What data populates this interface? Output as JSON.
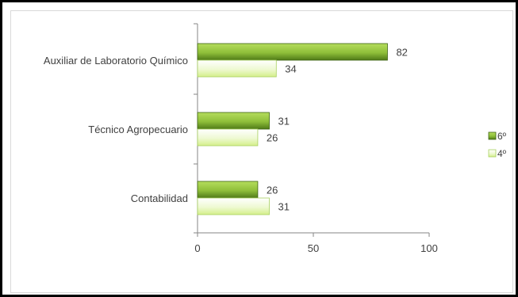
{
  "chart_data": {
    "type": "bar",
    "orientation": "horizontal",
    "categories": [
      "Auxiliar de Laboratorio Químico",
      "Técnico Agropecuario",
      "Contabilidad"
    ],
    "series": [
      {
        "name": "6º",
        "values": [
          82,
          31,
          26
        ]
      },
      {
        "name": "4º",
        "values": [
          34,
          26,
          31
        ]
      }
    ],
    "xlim": [
      0,
      100
    ],
    "xticks": [
      0,
      50,
      100
    ],
    "grid": false,
    "legend_position": "right",
    "colors": {
      "6º": {
        "light": "#b5dd5c",
        "mid": "#8fbf3a",
        "dark": "#4f7a17",
        "stroke": "#3d6312"
      },
      "4º": {
        "light": "#ffffff",
        "mid": "#eef9d2",
        "dark": "#d4ef8a",
        "stroke": "#a8d060"
      }
    }
  }
}
